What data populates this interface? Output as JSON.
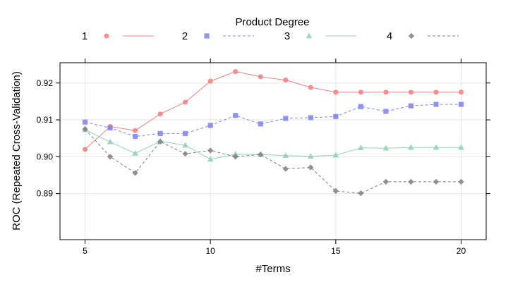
{
  "chart_data": {
    "type": "line",
    "legend_title": "Product Degree",
    "legend_position": "top",
    "xlabel": "#Terms",
    "ylabel": "ROC (Repeated Cross-Validation)",
    "xlim": [
      4,
      21
    ],
    "ylim": [
      0.8775,
      0.9255
    ],
    "x_ticks": [
      5,
      10,
      15,
      20
    ],
    "y_ticks": [
      0.89,
      0.9,
      0.91,
      0.92
    ],
    "x_tick_labels": [
      "5",
      "10",
      "15",
      "20"
    ],
    "y_tick_labels": [
      "0.89",
      "0.90",
      "0.91",
      "0.92"
    ],
    "grid": true,
    "series": [
      {
        "name": "1",
        "color": "#f08080",
        "marker": "circle",
        "line": "solid",
        "points": [
          [
            5,
            0.902
          ],
          [
            6,
            0.9082
          ],
          [
            7,
            0.9071
          ],
          [
            8,
            0.9116
          ],
          [
            9,
            0.9148
          ],
          [
            10,
            0.9205
          ],
          [
            11,
            0.9231
          ],
          [
            12,
            0.9217
          ],
          [
            13,
            0.9208
          ],
          [
            14,
            0.9188
          ],
          [
            15,
            0.9175
          ],
          [
            16,
            0.9175
          ],
          [
            17,
            0.9175
          ],
          [
            18,
            0.9175
          ],
          [
            19,
            0.9175
          ],
          [
            20,
            0.9175
          ]
        ]
      },
      {
        "name": "2",
        "color": "#8080f0",
        "marker": "square",
        "line": "dashed",
        "points": [
          [
            5,
            0.9094
          ],
          [
            6,
            0.9078
          ],
          [
            7,
            0.9055
          ],
          [
            8,
            0.9063
          ],
          [
            9,
            0.9063
          ],
          [
            10,
            0.9085
          ],
          [
            11,
            0.9112
          ],
          [
            12,
            0.9089
          ],
          [
            13,
            0.9104
          ],
          [
            14,
            0.9106
          ],
          [
            15,
            0.9109
          ],
          [
            16,
            0.9136
          ],
          [
            17,
            0.9123
          ],
          [
            18,
            0.9138
          ],
          [
            19,
            0.9142
          ],
          [
            20,
            0.9142
          ]
        ]
      },
      {
        "name": "3",
        "color": "#8fd1b4",
        "marker": "triangle",
        "line": "solid",
        "points": [
          [
            5,
            0.9073
          ],
          [
            6,
            0.904
          ],
          [
            7,
            0.9009
          ],
          [
            8,
            0.9042
          ],
          [
            9,
            0.9031
          ],
          [
            10,
            0.8993
          ],
          [
            11,
            0.9007
          ],
          [
            12,
            0.9006
          ],
          [
            13,
            0.9003
          ],
          [
            14,
            0.9001
          ],
          [
            15,
            0.9004
          ],
          [
            16,
            0.9024
          ],
          [
            17,
            0.9023
          ],
          [
            18,
            0.9025
          ],
          [
            19,
            0.9025
          ],
          [
            20,
            0.9025
          ]
        ]
      },
      {
        "name": "4",
        "color": "#808080",
        "marker": "diamond",
        "line": "dashed",
        "points": [
          [
            5,
            0.9075
          ],
          [
            6,
            0.9
          ],
          [
            7,
            0.8956
          ],
          [
            8,
            0.9041
          ],
          [
            9,
            0.9008
          ],
          [
            10,
            0.9017
          ],
          [
            11,
            0.9
          ],
          [
            12,
            0.9006
          ],
          [
            13,
            0.8967
          ],
          [
            14,
            0.8971
          ],
          [
            15,
            0.8907
          ],
          [
            16,
            0.8901
          ],
          [
            17,
            0.8932
          ],
          [
            18,
            0.8932
          ],
          [
            19,
            0.8932
          ],
          [
            20,
            0.8932
          ]
        ]
      }
    ]
  }
}
